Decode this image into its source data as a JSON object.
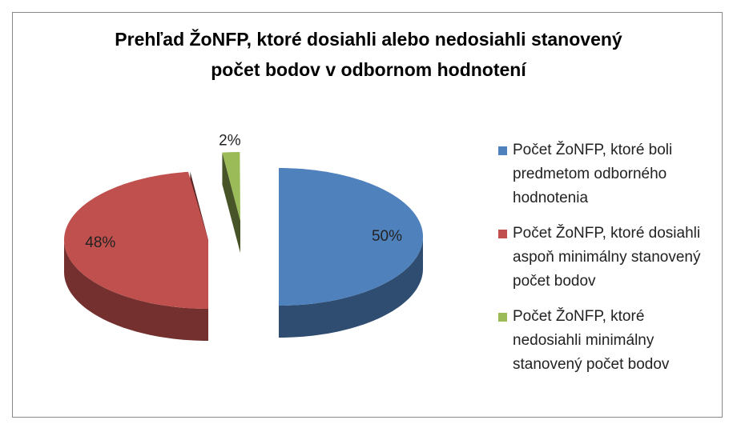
{
  "chart_data": {
    "type": "pie",
    "title": "Prehľad ŽoNFP, ktoré dosiahli alebo nedosiahli stanovený počet bodov v odbornom hodnotení",
    "categories": [
      "Počet ŽoNFP, ktoré boli predmetom odborného hodnotenia",
      "Počet ŽoNFP, ktoré dosiahli aspoň minimálny stanovený počet bodov",
      "Počet ŽoNFP, ktoré nedosiahli minimálny stanovený počet bodov"
    ],
    "values": [
      50,
      48,
      2
    ],
    "value_labels": [
      "50%",
      "48%",
      "2%"
    ],
    "colors": [
      "#4f81bd",
      "#c0504d",
      "#9bbb59"
    ],
    "legend": "right"
  }
}
